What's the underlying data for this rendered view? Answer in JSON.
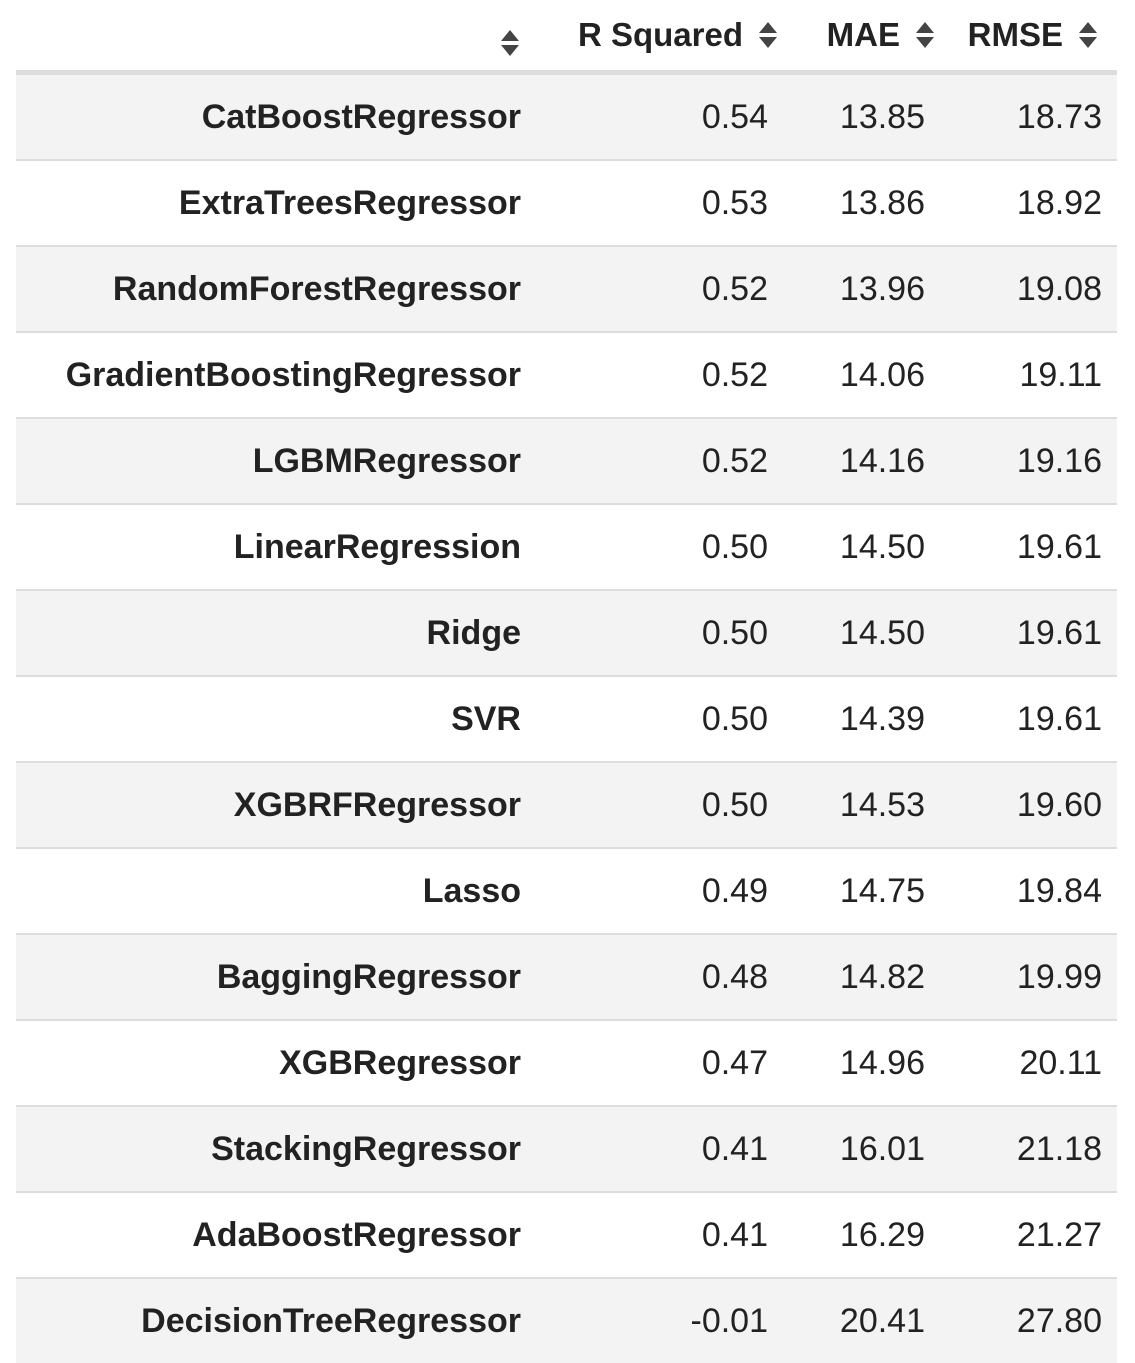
{
  "table": {
    "headers": {
      "model": "",
      "r_squared": "R Squared",
      "mae": "MAE",
      "rmse": "RMSE"
    },
    "sort_icon": "sort-updown-icon",
    "rows": [
      {
        "model": "CatBoostRegressor",
        "r_squared": "0.54",
        "mae": "13.85",
        "rmse": "18.73"
      },
      {
        "model": "ExtraTreesRegressor",
        "r_squared": "0.53",
        "mae": "13.86",
        "rmse": "18.92"
      },
      {
        "model": "RandomForestRegressor",
        "r_squared": "0.52",
        "mae": "13.96",
        "rmse": "19.08"
      },
      {
        "model": "GradientBoostingRegressor",
        "r_squared": "0.52",
        "mae": "14.06",
        "rmse": "19.11"
      },
      {
        "model": "LGBMRegressor",
        "r_squared": "0.52",
        "mae": "14.16",
        "rmse": "19.16"
      },
      {
        "model": "LinearRegression",
        "r_squared": "0.50",
        "mae": "14.50",
        "rmse": "19.61"
      },
      {
        "model": "Ridge",
        "r_squared": "0.50",
        "mae": "14.50",
        "rmse": "19.61"
      },
      {
        "model": "SVR",
        "r_squared": "0.50",
        "mae": "14.39",
        "rmse": "19.61"
      },
      {
        "model": "XGBRFRegressor",
        "r_squared": "0.50",
        "mae": "14.53",
        "rmse": "19.60"
      },
      {
        "model": "Lasso",
        "r_squared": "0.49",
        "mae": "14.75",
        "rmse": "19.84"
      },
      {
        "model": "BaggingRegressor",
        "r_squared": "0.48",
        "mae": "14.82",
        "rmse": "19.99"
      },
      {
        "model": "XGBRegressor",
        "r_squared": "0.47",
        "mae": "14.96",
        "rmse": "20.11"
      },
      {
        "model": "StackingRegressor",
        "r_squared": "0.41",
        "mae": "16.01",
        "rmse": "21.18"
      },
      {
        "model": "AdaBoostRegressor",
        "r_squared": "0.41",
        "mae": "16.29",
        "rmse": "21.27"
      },
      {
        "model": "DecisionTreeRegressor",
        "r_squared": "-0.01",
        "mae": "20.41",
        "rmse": "27.80"
      }
    ]
  },
  "colors": {
    "text": "#222222",
    "stripe": "#f3f3f3",
    "border": "#dddddd",
    "sort_icon": "#444444"
  }
}
